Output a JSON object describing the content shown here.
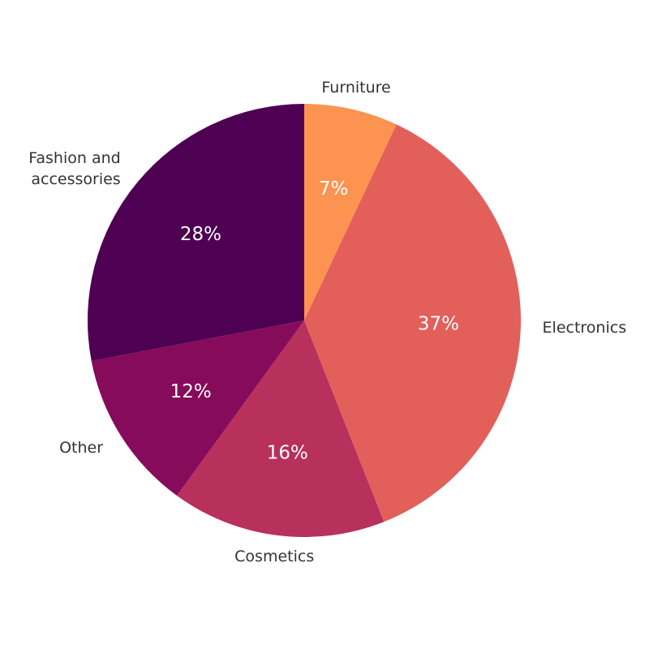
{
  "chart_data": {
    "type": "pie",
    "categories": [
      "Furniture",
      "Electronics",
      "Cosmetics",
      "Other",
      "Fashion and accessories"
    ],
    "values": [
      7,
      37,
      16,
      12,
      28
    ],
    "value_labels": [
      "7%",
      "37%",
      "16%",
      "12%",
      "28%"
    ],
    "colors": [
      "#fd9350",
      "#e35f5a",
      "#b8305c",
      "#860b5b",
      "#4e0052"
    ]
  }
}
